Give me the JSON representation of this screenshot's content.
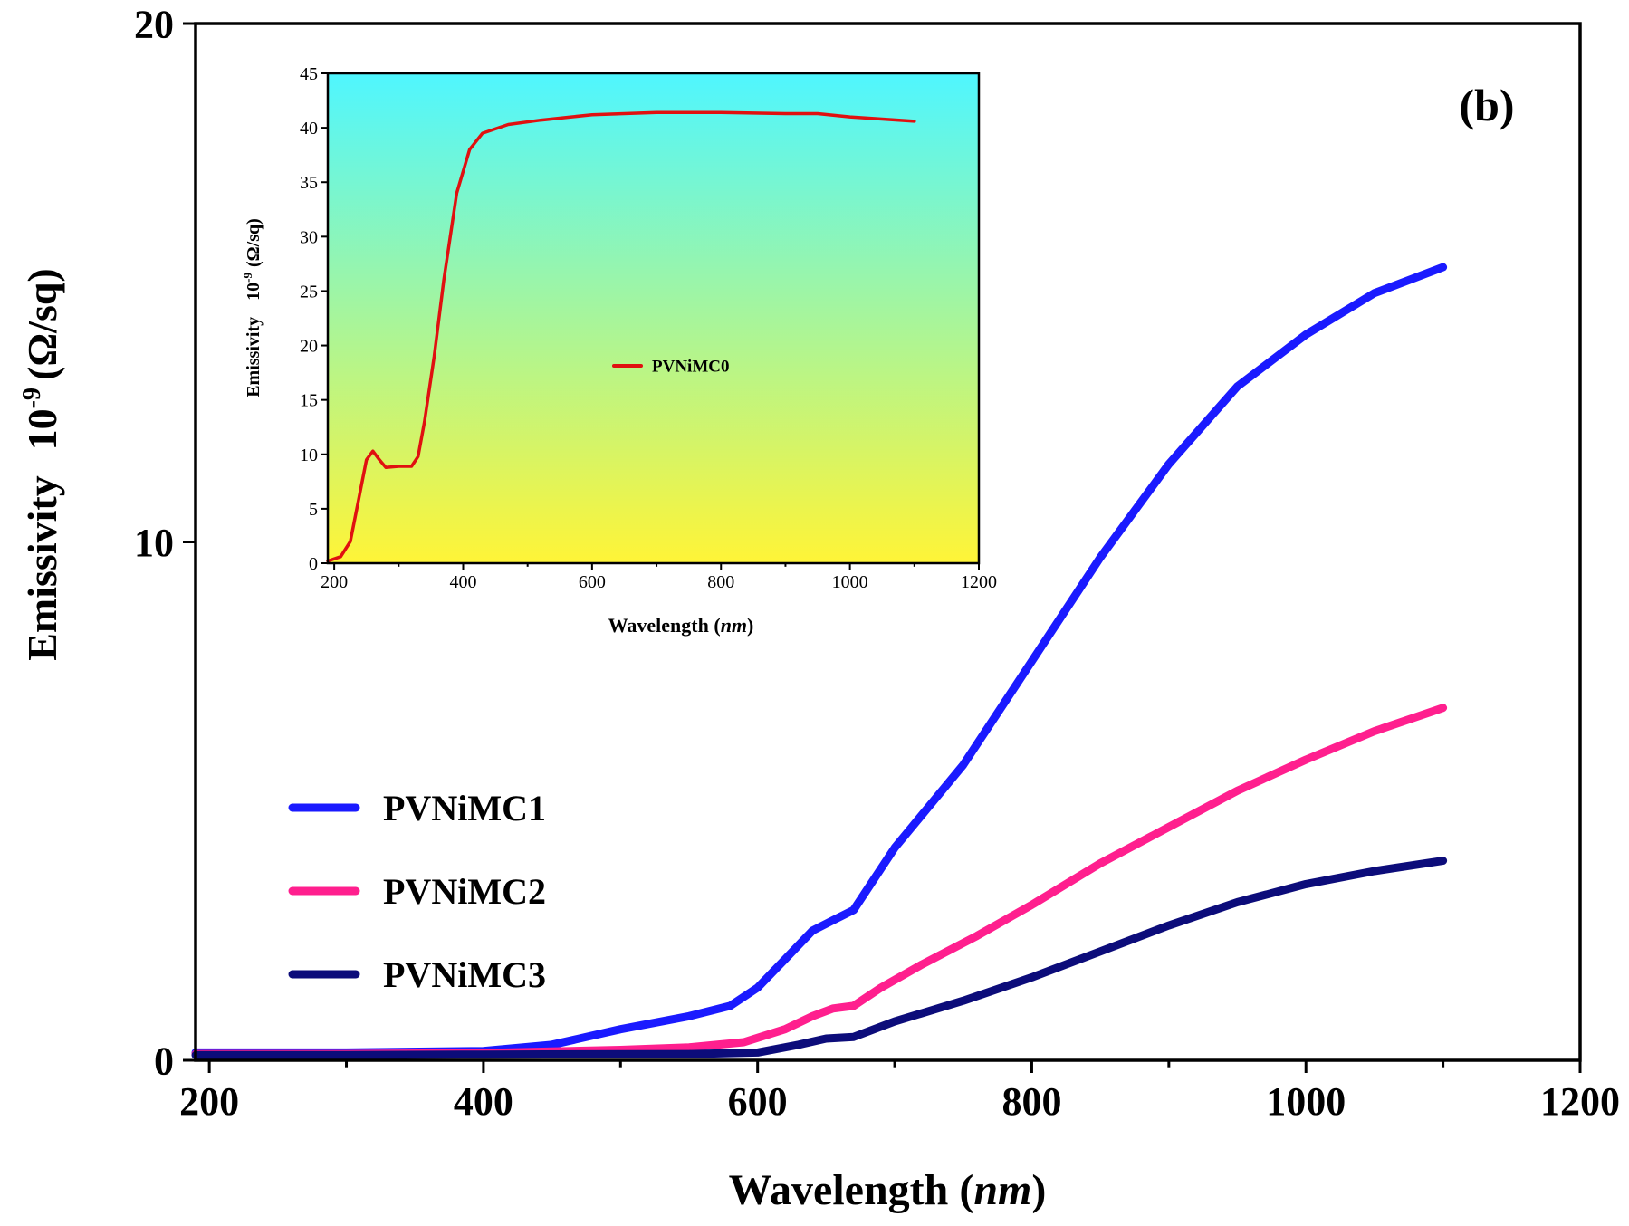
{
  "panel_label": "(b)",
  "chart_data": [
    {
      "id": "main",
      "type": "line",
      "xlabel_main": "Wavelength",
      "xlabel_unit": "nm",
      "ylabel_main": "Emissivity",
      "ylabel_exp_base": "10",
      "ylabel_exp_power": "-9",
      "ylabel_unit": "(Ω/sq)",
      "xlim": [
        190,
        1200
      ],
      "ylim": [
        0,
        20
      ],
      "x_ticks": [
        200,
        400,
        600,
        800,
        1000,
        1200
      ],
      "y_ticks": [
        0,
        10,
        20
      ],
      "legend_position": "middle-left",
      "series": [
        {
          "name": "PVNiMC1",
          "color": "#1a1aff",
          "points": [
            [
              190,
              0.15
            ],
            [
              300,
              0.15
            ],
            [
              400,
              0.18
            ],
            [
              450,
              0.3
            ],
            [
              500,
              0.6
            ],
            [
              550,
              0.85
            ],
            [
              580,
              1.05
            ],
            [
              600,
              1.4
            ],
            [
              620,
              1.95
            ],
            [
              640,
              2.5
            ],
            [
              655,
              2.7
            ],
            [
              670,
              2.9
            ],
            [
              680,
              3.3
            ],
            [
              700,
              4.1
            ],
            [
              750,
              5.7
            ],
            [
              800,
              7.7
            ],
            [
              850,
              9.7
            ],
            [
              900,
              11.5
            ],
            [
              950,
              13.0
            ],
            [
              1000,
              14.0
            ],
            [
              1050,
              14.8
            ],
            [
              1100,
              15.3
            ]
          ]
        },
        {
          "name": "PVNiMC2",
          "color": "#ff1f8e",
          "points": [
            [
              190,
              0.12
            ],
            [
              300,
              0.12
            ],
            [
              400,
              0.14
            ],
            [
              500,
              0.2
            ],
            [
              550,
              0.25
            ],
            [
              590,
              0.35
            ],
            [
              620,
              0.6
            ],
            [
              640,
              0.85
            ],
            [
              655,
              1.0
            ],
            [
              670,
              1.05
            ],
            [
              690,
              1.4
            ],
            [
              720,
              1.85
            ],
            [
              760,
              2.4
            ],
            [
              800,
              3.0
            ],
            [
              850,
              3.8
            ],
            [
              900,
              4.5
            ],
            [
              950,
              5.2
            ],
            [
              1000,
              5.8
            ],
            [
              1050,
              6.35
            ],
            [
              1100,
              6.8
            ]
          ]
        },
        {
          "name": "PVNiMC3",
          "color": "#0c0c7a",
          "points": [
            [
              190,
              0.1
            ],
            [
              300,
              0.1
            ],
            [
              400,
              0.11
            ],
            [
              550,
              0.12
            ],
            [
              600,
              0.15
            ],
            [
              630,
              0.3
            ],
            [
              650,
              0.42
            ],
            [
              670,
              0.45
            ],
            [
              700,
              0.75
            ],
            [
              750,
              1.15
            ],
            [
              800,
              1.6
            ],
            [
              850,
              2.1
            ],
            [
              900,
              2.6
            ],
            [
              950,
              3.05
            ],
            [
              1000,
              3.4
            ],
            [
              1050,
              3.65
            ],
            [
              1100,
              3.85
            ]
          ]
        }
      ]
    },
    {
      "id": "inset",
      "type": "line",
      "xlabel_main": "Wavelength",
      "xlabel_unit": "nm",
      "ylabel_main": "Emissivity",
      "ylabel_exp_base": "10",
      "ylabel_exp_power": "-9",
      "ylabel_unit": "(Ω/sq)",
      "xlim": [
        190,
        1200
      ],
      "ylim": [
        0,
        45
      ],
      "x_ticks": [
        200,
        400,
        600,
        800,
        1000,
        1200
      ],
      "y_ticks": [
        0,
        5,
        10,
        15,
        20,
        25,
        30,
        35,
        40,
        45
      ],
      "background_gradient": [
        "#4ff6ff",
        "#fff437"
      ],
      "legend_position": "center",
      "series": [
        {
          "name": "PVNiMC0",
          "color": "#e01010",
          "points": [
            [
              190,
              0.2
            ],
            [
              210,
              0.6
            ],
            [
              225,
              2.0
            ],
            [
              240,
              6.5
            ],
            [
              250,
              9.5
            ],
            [
              260,
              10.3
            ],
            [
              270,
              9.5
            ],
            [
              280,
              8.8
            ],
            [
              300,
              8.9
            ],
            [
              320,
              8.9
            ],
            [
              330,
              9.8
            ],
            [
              340,
              13.0
            ],
            [
              355,
              19.0
            ],
            [
              370,
              26.0
            ],
            [
              390,
              34.0
            ],
            [
              410,
              38.0
            ],
            [
              430,
              39.5
            ],
            [
              470,
              40.3
            ],
            [
              520,
              40.7
            ],
            [
              600,
              41.2
            ],
            [
              700,
              41.4
            ],
            [
              800,
              41.4
            ],
            [
              900,
              41.3
            ],
            [
              950,
              41.3
            ],
            [
              1000,
              41.0
            ],
            [
              1050,
              40.8
            ],
            [
              1100,
              40.6
            ]
          ]
        }
      ]
    }
  ]
}
